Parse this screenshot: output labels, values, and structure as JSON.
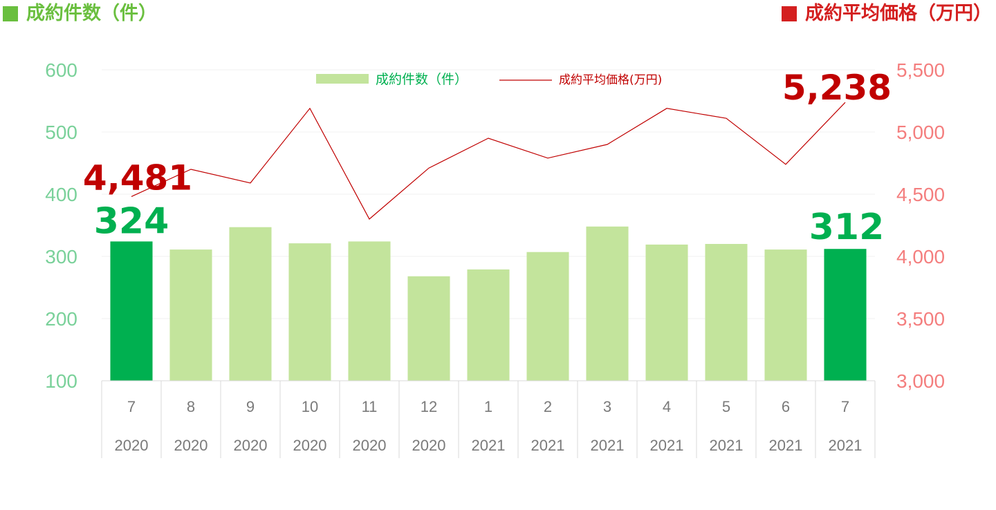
{
  "titles": {
    "left": "成約件数（件）",
    "right": "成約平均価格（万円）"
  },
  "colors": {
    "bar": "#c3e49c",
    "bar_highlight": "#00b050",
    "line": "#c00000",
    "left_axis": "#7ad19a",
    "right_axis": "#f47e7e",
    "left_title": "#6abf3f",
    "right_title": "#d42020"
  },
  "chart_data": {
    "type": "bar",
    "categories": [
      {
        "month": "7",
        "year": "2020"
      },
      {
        "month": "8",
        "year": "2020"
      },
      {
        "month": "9",
        "year": "2020"
      },
      {
        "month": "10",
        "year": "2020"
      },
      {
        "month": "11",
        "year": "2020"
      },
      {
        "month": "12",
        "year": "2020"
      },
      {
        "month": "1",
        "year": "2021"
      },
      {
        "month": "2",
        "year": "2021"
      },
      {
        "month": "3",
        "year": "2021"
      },
      {
        "month": "4",
        "year": "2021"
      },
      {
        "month": "5",
        "year": "2021"
      },
      {
        "month": "6",
        "year": "2021"
      },
      {
        "month": "7",
        "year": "2021"
      }
    ],
    "series": [
      {
        "name": "成約件数（件）",
        "type": "bar",
        "axis": "left",
        "values": [
          324,
          311,
          347,
          321,
          324,
          268,
          279,
          307,
          348,
          319,
          320,
          311,
          312
        ],
        "highlight": [
          0,
          12
        ]
      },
      {
        "name": "成約平均価格(万円)",
        "type": "line",
        "axis": "right",
        "values": [
          4481,
          4700,
          4590,
          5190,
          4300,
          4710,
          4950,
          4790,
          4900,
          5190,
          5110,
          4740,
          5238
        ]
      }
    ],
    "y_left": {
      "min": 100,
      "max": 600,
      "ticks": [
        "100",
        "200",
        "300",
        "400",
        "500",
        "600"
      ]
    },
    "y_right": {
      "min": 3000,
      "max": 5500,
      "ticks": [
        "3,000",
        "3,500",
        "4,000",
        "4,500",
        "5,000",
        "5,500"
      ]
    },
    "annotations": {
      "bar_first": "324",
      "bar_last": "312",
      "line_first": "4,481",
      "line_last": "5,238"
    },
    "legend": {
      "position": "top-center"
    },
    "grid": true
  }
}
